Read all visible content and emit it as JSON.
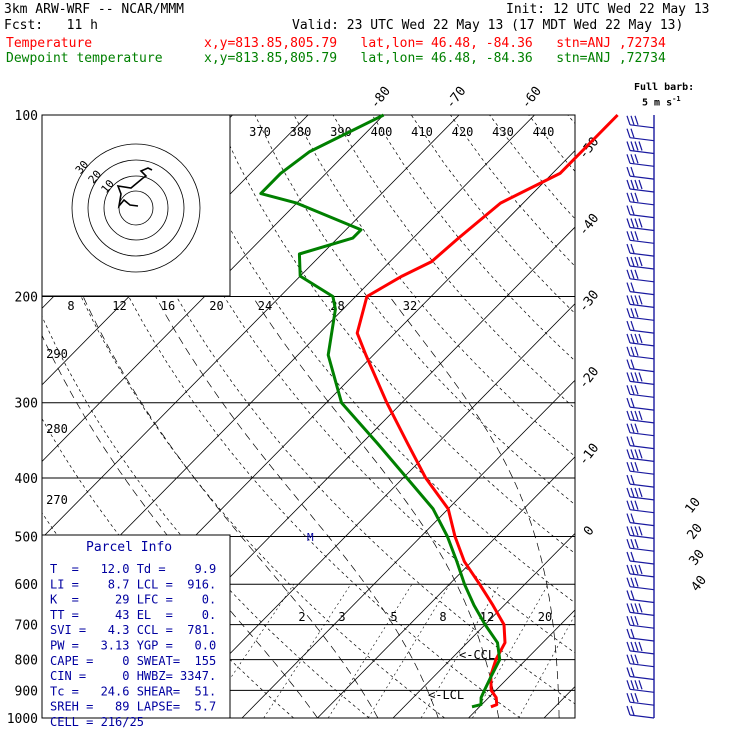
{
  "header": {
    "model": "3km ARW-WRF -- NCAR/MMM",
    "init": "Init: 12 UTC Wed 22 May 13",
    "fcst": "Fcst:   11 h",
    "valid": "Valid: 23 UTC Wed 22 May 13 (17 MDT Wed 22 May 13)",
    "temp_label": "Temperature",
    "temp_info": "x,y=813.85,805.79   lat,lon= 46.48, -84.36   stn=ANJ ,72734",
    "dew_label": "Dewpoint temperature",
    "dew_info": "x,y=813.85,805.79   lat,lon= 46.48, -84.36   stn=ANJ ,72734",
    "barb_note_1": "Full barb:",
    "barb_note_2": "5 m s",
    "barb_note_exp": "-1"
  },
  "colors": {
    "temperature": "#ff0000",
    "dewpoint": "#008000",
    "parcel_text": "#0000a0",
    "barbs": "#1a1aa0"
  },
  "chart_data": {
    "type": "line",
    "title": "",
    "subtype": "skew-T log-P diagram",
    "y_axis": {
      "scale": "log",
      "range": [
        1000,
        100
      ],
      "labels": [
        100,
        200,
        300,
        400,
        500,
        600,
        700,
        800,
        900,
        1000
      ]
    },
    "isotherm_labels": [
      -80,
      -70,
      -60,
      -50,
      -40,
      -30,
      -20,
      -10,
      0,
      10,
      20,
      30,
      40
    ],
    "theta_e_labels": [
      370,
      380,
      390,
      400,
      410,
      420,
      430,
      440
    ],
    "theta_labels": [
      290,
      280,
      270
    ],
    "mixing_ratio_upper": [
      8,
      12,
      16,
      20,
      24,
      28,
      32
    ],
    "mixing_ratio_lower": [
      2,
      3,
      5,
      8,
      12,
      20
    ],
    "series": [
      {
        "name": "Temperature",
        "color": "#ff0000",
        "points": [
          [
            958,
            11.5
          ],
          [
            950,
            12.0
          ],
          [
            925,
            11.0
          ],
          [
            900,
            9.4
          ],
          [
            850,
            7.4
          ],
          [
            800,
            6.0
          ],
          [
            750,
            5.0
          ],
          [
            700,
            2.5
          ],
          [
            650,
            -1.5
          ],
          [
            600,
            -6.0
          ],
          [
            550,
            -11.0
          ],
          [
            500,
            -15.5
          ],
          [
            450,
            -20.0
          ],
          [
            400,
            -27.0
          ],
          [
            350,
            -34.0
          ],
          [
            300,
            -42.0
          ],
          [
            250,
            -51.0
          ],
          [
            230,
            -55.0
          ],
          [
            200,
            -58.5
          ],
          [
            185,
            -56.5
          ],
          [
            175,
            -54.5
          ],
          [
            160,
            -54.0
          ],
          [
            140,
            -53.0
          ],
          [
            125,
            -49.0
          ],
          [
            110,
            -49.0
          ],
          [
            100,
            -49.0
          ]
        ]
      },
      {
        "name": "Dewpoint temperature",
        "color": "#008000",
        "points": [
          [
            958,
            9.0
          ],
          [
            950,
            9.9
          ],
          [
            925,
            9.0
          ],
          [
            900,
            8.5
          ],
          [
            850,
            7.5
          ],
          [
            800,
            6.5
          ],
          [
            750,
            4.0
          ],
          [
            700,
            0.0
          ],
          [
            650,
            -4.0
          ],
          [
            600,
            -8.0
          ],
          [
            550,
            -12.0
          ],
          [
            500,
            -16.5
          ],
          [
            450,
            -22.0
          ],
          [
            400,
            -29.5
          ],
          [
            350,
            -38.0
          ],
          [
            300,
            -48.0
          ],
          [
            250,
            -56.0
          ],
          [
            210,
            -61.0
          ],
          [
            200,
            -63.0
          ],
          [
            185,
            -70.0
          ],
          [
            170,
            -73.0
          ],
          [
            160,
            -68.0
          ],
          [
            155,
            -68.0
          ],
          [
            140,
            -80.0
          ],
          [
            135,
            -86.0
          ],
          [
            125,
            -86.0
          ],
          [
            115,
            -85.0
          ],
          [
            100,
            -80.0
          ]
        ]
      }
    ],
    "markers": {
      "ccl": "<-CCL",
      "lcl": "<-LCL",
      "m": "M"
    },
    "hodograph": {
      "unit": "kts",
      "ring_labels": [
        "10",
        "20",
        "30"
      ],
      "trace": [
        [
          2,
          2
        ],
        [
          -6,
          3
        ],
        [
          -12,
          8
        ],
        [
          -17,
          2
        ],
        [
          -15,
          14
        ],
        [
          -18,
          22
        ],
        [
          -5,
          20
        ],
        [
          7,
          30
        ],
        [
          10,
          32
        ],
        [
          5,
          37
        ],
        [
          12,
          40
        ],
        [
          16,
          38
        ]
      ]
    },
    "wind_barbs": {
      "unit": "kts",
      "count": 48
    }
  },
  "parcel_info": {
    "title": "Parcel Info",
    "rows": [
      "T  =   12.0 Td =    9.9",
      "LI =    8.7 LCL =  916.",
      "K  =     29 LFC =    0.",
      "TT =     43 EL  =    0.",
      "SVI =   4.3 CCL =  781.",
      "PW =   3.13 YGP =   0.0",
      "CAPE =    0 SWEAT=  155",
      "CIN =     0 HWBZ= 3347.",
      "Tc =   24.6 SHEAR=  51.",
      "SREH =   89 LAPSE=  5.7",
      "CELL = 216/25"
    ]
  }
}
